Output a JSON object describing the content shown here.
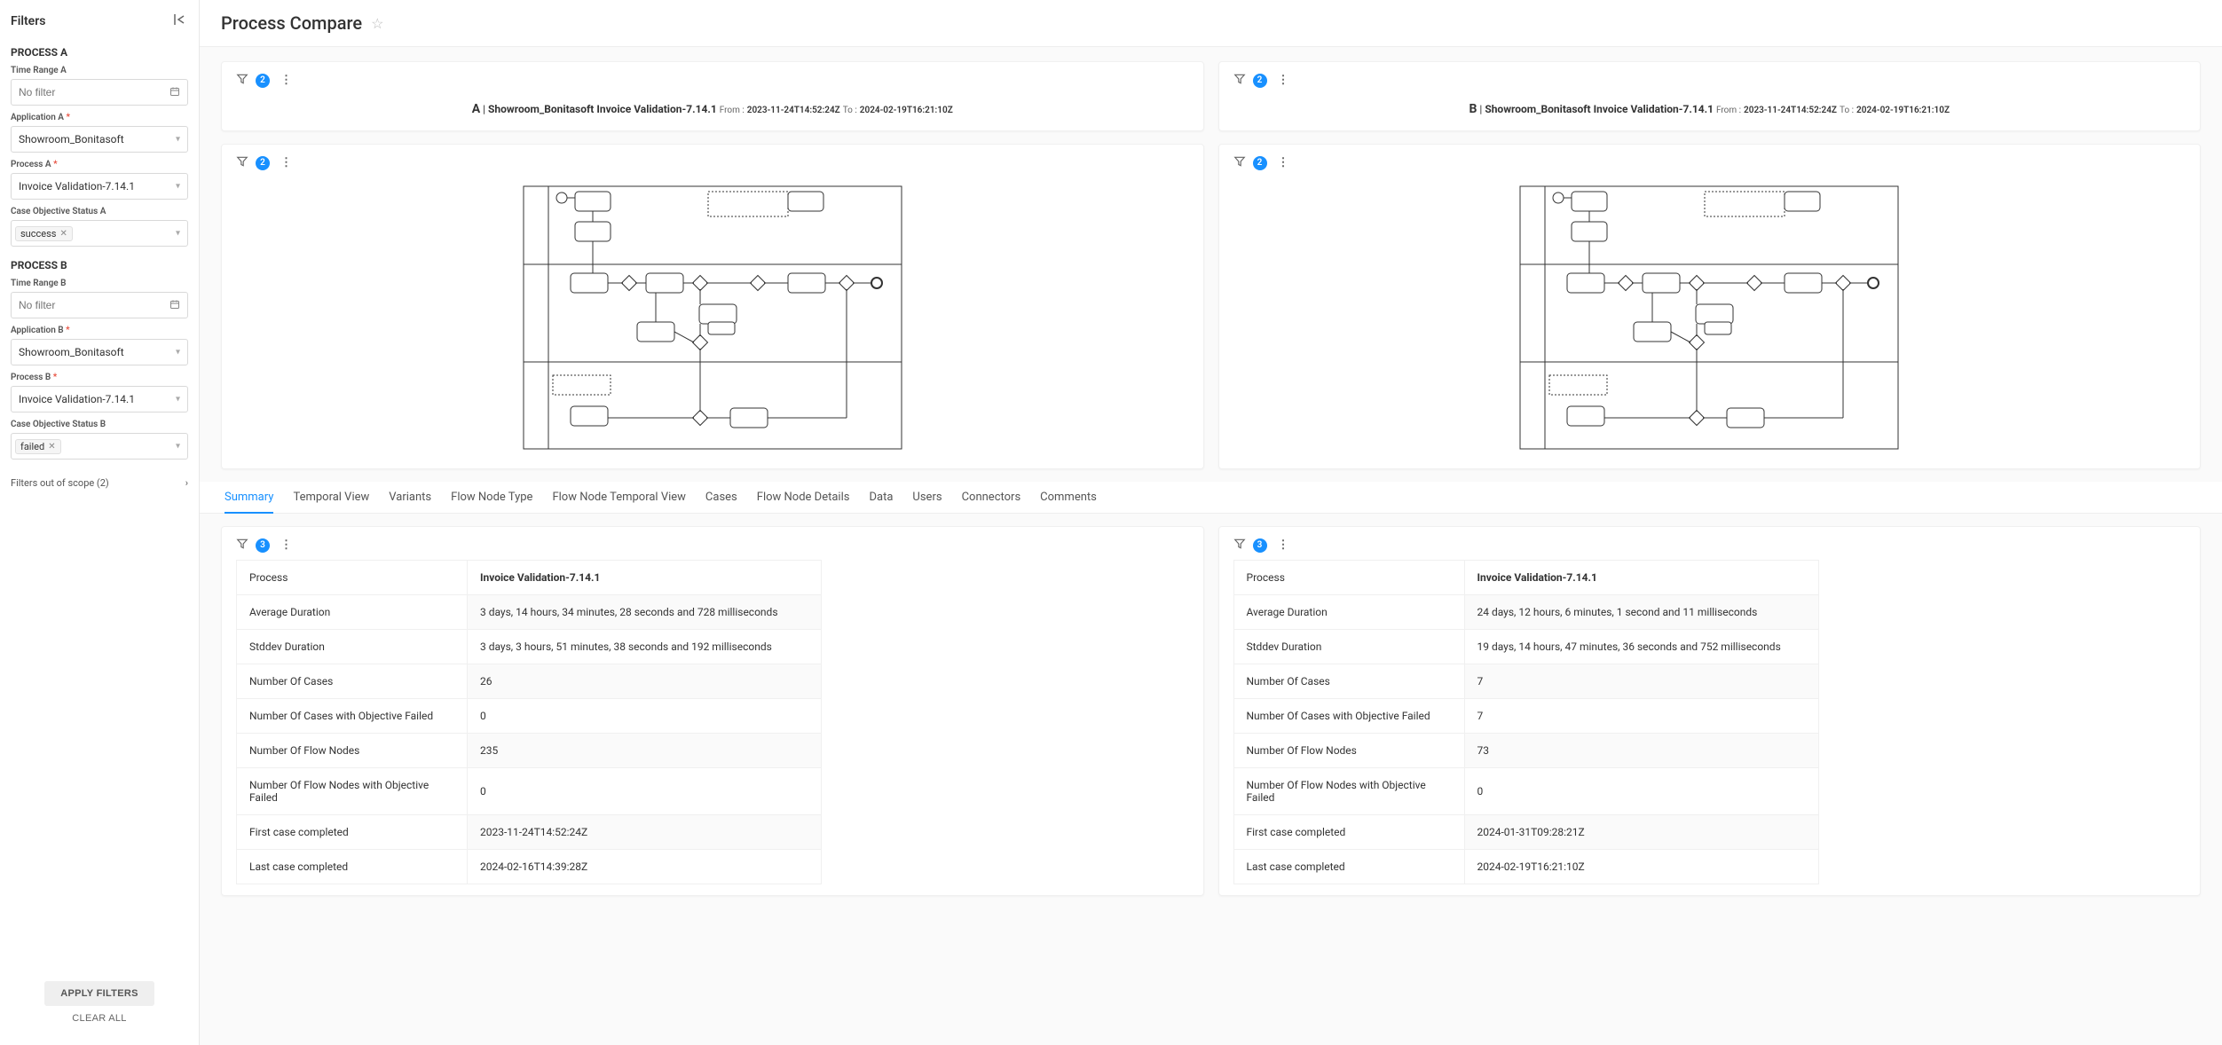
{
  "page": {
    "title": "Process Compare"
  },
  "sidebar": {
    "title": "Filters",
    "processA": {
      "section_title": "PROCESS A",
      "time_range_label": "Time Range A",
      "time_range_placeholder": "No filter",
      "application_label": "Application A",
      "application_value": "Showroom_Bonitasoft",
      "process_label": "Process A",
      "process_value": "Invoice Validation-7.14.1",
      "case_status_label": "Case Objective Status A",
      "case_status_tag": "success"
    },
    "processB": {
      "section_title": "PROCESS B",
      "time_range_label": "Time Range B",
      "time_range_placeholder": "No filter",
      "application_label": "Application B",
      "application_value": "Showroom_Bonitasoft",
      "process_label": "Process B",
      "process_value": "Invoice Validation-7.14.1",
      "case_status_label": "Case Objective Status B",
      "case_status_tag": "failed"
    },
    "out_of_scope": "Filters out of scope (2)",
    "apply_label": "APPLY FILTERS",
    "clear_label": "CLEAR ALL"
  },
  "headers": {
    "a": {
      "letter": "A",
      "process": "Showroom_Bonitasoft Invoice Validation-7.14.1",
      "from_label": "From :",
      "from_value": "2023-11-24T14:52:24Z",
      "to_label": "To :",
      "to_value": "2024-02-19T16:21:10Z",
      "badge": "2"
    },
    "b": {
      "letter": "B",
      "process": "Showroom_Bonitasoft Invoice Validation-7.14.1",
      "from_label": "From :",
      "from_value": "2023-11-24T14:52:24Z",
      "to_label": "To :",
      "to_value": "2024-02-19T16:21:10Z",
      "badge": "2"
    }
  },
  "diagram": {
    "a_badge": "2",
    "b_badge": "2"
  },
  "tabs": [
    "Summary",
    "Temporal View",
    "Variants",
    "Flow Node Type",
    "Flow Node Temporal View",
    "Cases",
    "Flow Node Details",
    "Data",
    "Users",
    "Connectors",
    "Comments"
  ],
  "summary": {
    "a_badge": "3",
    "b_badge": "3",
    "rows": [
      {
        "label": "Process",
        "a": "Invoice Validation-7.14.1",
        "b": "Invoice Validation-7.14.1",
        "bold": true
      },
      {
        "label": "Average Duration",
        "a": "3 days, 14 hours, 34 minutes, 28 seconds and 728 milliseconds",
        "b": "24 days, 12 hours, 6 minutes, 1 second and 11 milliseconds"
      },
      {
        "label": "Stddev Duration",
        "a": "3 days, 3 hours, 51 minutes, 38 seconds and 192 milliseconds",
        "b": "19 days, 14 hours, 47 minutes, 36 seconds and 752 milliseconds"
      },
      {
        "label": "Number Of Cases",
        "a": "26",
        "b": "7"
      },
      {
        "label": "Number Of Cases with Objective Failed",
        "a": "0",
        "b": "7"
      },
      {
        "label": "Number Of Flow Nodes",
        "a": "235",
        "b": "73"
      },
      {
        "label": "Number Of Flow Nodes with Objective Failed",
        "a": "0",
        "b": "0"
      },
      {
        "label": "First case completed",
        "a": "2023-11-24T14:52:24Z",
        "b": "2024-01-31T09:28:21Z"
      },
      {
        "label": "Last case completed",
        "a": "2024-02-16T14:39:28Z",
        "b": "2024-02-19T16:21:10Z"
      }
    ]
  },
  "colors": {
    "accent": "#1890ff",
    "border": "#e8e8e8",
    "text_muted": "#666"
  }
}
